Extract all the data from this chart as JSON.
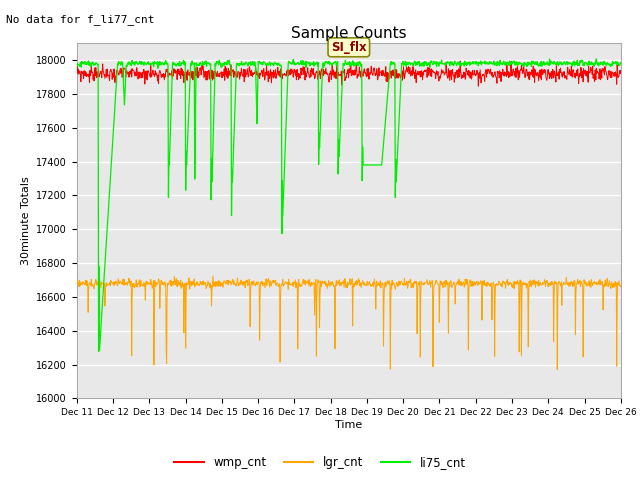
{
  "title": "Sample Counts",
  "subtitle": "No data for f_li77_cnt",
  "xlabel": "Time",
  "ylabel": "30minute Totals",
  "yticks": [
    16000,
    16200,
    16400,
    16600,
    16800,
    17000,
    17200,
    17400,
    17600,
    17800,
    18000
  ],
  "xtick_labels": [
    "Dec 11",
    "Dec 12",
    "Dec 13",
    "Dec 14",
    "Dec 15",
    "Dec 16",
    "Dec 17",
    "Dec 18",
    "Dec 19",
    "Dec 20",
    "Dec 21",
    "Dec 22",
    "Dec 23",
    "Dec 24",
    "Dec 25",
    "Dec 26"
  ],
  "wmp_color": "#ff0000",
  "lgr_color": "#ffa500",
  "li75_color": "#00ee00",
  "annotation_text": "SI_flx",
  "bg_color": "#ffffff",
  "plot_bg_color": "#e8e8e8",
  "legend_entries": [
    "wmp_cnt",
    "lgr_cnt",
    "li75_cnt"
  ],
  "wmp_base": 17920,
  "lgr_base": 16680,
  "li75_base": 17980
}
